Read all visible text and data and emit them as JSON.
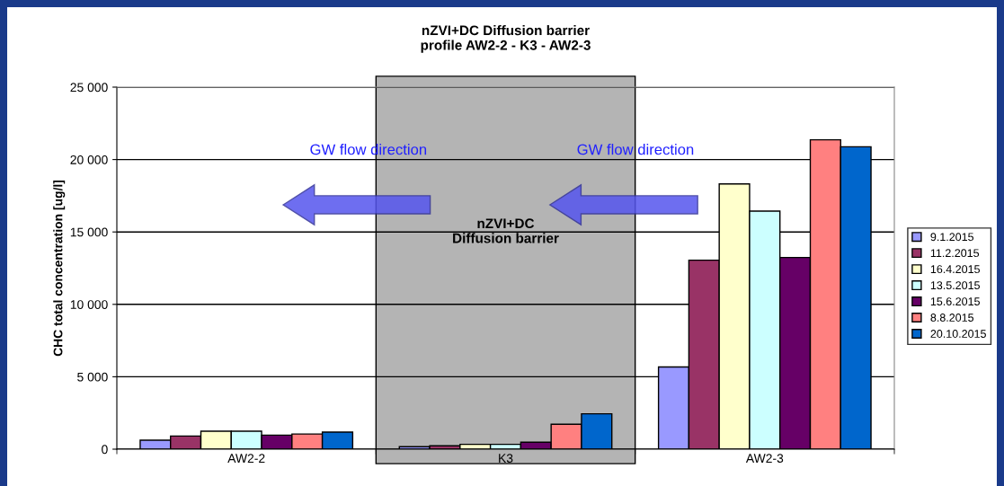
{
  "chart_data": {
    "type": "bar",
    "title": "nZVI+DC Diffusion barrier\nprofile AW2-2 - K3 - AW2-3",
    "ylabel": "CHC total concentration [ug/l]",
    "categories": [
      "AW2-2",
      "K3",
      "AW2-3"
    ],
    "series": [
      {
        "name": "9.1.2015",
        "color": "#9999ff",
        "values": [
          620,
          170,
          5680
        ]
      },
      {
        "name": "11.2.2015",
        "color": "#993366",
        "values": [
          910,
          230,
          13050
        ]
      },
      {
        "name": "16.4.2015",
        "color": "#ffffcc",
        "values": [
          1240,
          330,
          18320
        ]
      },
      {
        "name": "13.5.2015",
        "color": "#ccffff",
        "values": [
          1240,
          330,
          16440
        ]
      },
      {
        "name": "15.6.2015",
        "color": "#660066",
        "values": [
          970,
          480,
          13240
        ]
      },
      {
        "name": "8.8.2015",
        "color": "#ff8080",
        "values": [
          1050,
          1720,
          21360
        ]
      },
      {
        "name": "20.10.2015",
        "color": "#0066cc",
        "values": [
          1180,
          2440,
          20880
        ]
      }
    ],
    "ylim": [
      0,
      25000
    ],
    "yticks": [
      {
        "value": 0,
        "label": "0"
      },
      {
        "value": 5000,
        "label": "5 000"
      },
      {
        "value": 10000,
        "label": "10 000"
      },
      {
        "value": 15000,
        "label": "15 000"
      },
      {
        "value": 20000,
        "label": "20 000"
      },
      {
        "value": 25000,
        "label": "25 000"
      }
    ],
    "grid": "y",
    "legend": "right",
    "bands": [
      {
        "axis": "x",
        "from": "K3",
        "to": "K3",
        "label": "nZVI+DC\nDiffusion barrier",
        "color": "#b4b4b4"
      }
    ],
    "annotations": [
      "GW flow direction",
      "GW flow direction"
    ]
  }
}
